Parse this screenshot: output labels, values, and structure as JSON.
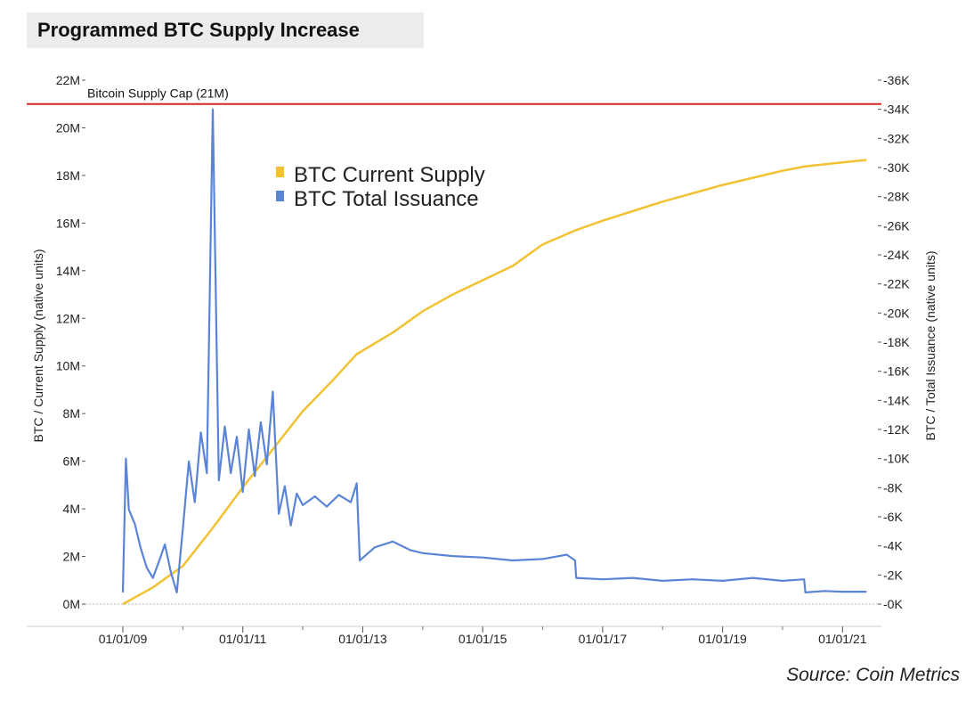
{
  "chart_data": {
    "type": "line",
    "title": "Programmed BTC Supply Increase",
    "source": "Source: Coin Metrics",
    "ylabel_left": "BTC / Current Supply (native units)",
    "ylabel_right": "BTC / Total Issuance (native units)",
    "left_ticks": [
      "0M",
      "2M",
      "4M",
      "6M",
      "8M",
      "10M",
      "12M",
      "14M",
      "16M",
      "18M",
      "20M",
      "22M"
    ],
    "right_ticks": [
      "0K",
      "2K",
      "4K",
      "6K",
      "8K",
      "10K",
      "12K",
      "14K",
      "16K",
      "18K",
      "20K",
      "22K",
      "24K",
      "26K",
      "28K",
      "30K",
      "32K",
      "34K",
      "36K"
    ],
    "x_ticks": [
      "01/01/09",
      "01/01/11",
      "01/01/13",
      "01/01/15",
      "01/01/17",
      "01/01/19",
      "01/01/21"
    ],
    "ylim_left": [
      0,
      22000000
    ],
    "ylim_right": [
      0,
      36000
    ],
    "xlim": [
      2009.0,
      2021.5
    ],
    "cap": {
      "label": "Bitcoin Supply Cap (21M)",
      "value": 21000000,
      "color": "#d62728"
    },
    "legend_placement": "upper-center",
    "grid": false,
    "series": [
      {
        "name": "BTC Current Supply",
        "axis": "left",
        "color": "#f2c233",
        "x": [
          2009.0,
          2009.5,
          2010.0,
          2010.5,
          2011.0,
          2011.5,
          2012.0,
          2012.5,
          2012.9,
          2013.5,
          2014.0,
          2014.5,
          2015.0,
          2015.5,
          2016.0,
          2016.55,
          2017.0,
          2017.5,
          2018.0,
          2018.5,
          2019.0,
          2019.5,
          2020.0,
          2020.37,
          2021.0,
          2021.4
        ],
        "values": [
          0,
          700000,
          1600000,
          3200000,
          4900000,
          6500000,
          8100000,
          9400000,
          10500000,
          11400000,
          12300000,
          13000000,
          13600000,
          14200000,
          15100000,
          15700000,
          16100000,
          16500000,
          16900000,
          17250000,
          17600000,
          17900000,
          18200000,
          18380000,
          18550000,
          18650000
        ]
      },
      {
        "name": "BTC Total Issuance",
        "axis": "right",
        "color": "#5b84d6",
        "x": [
          2009.0,
          2009.05,
          2009.1,
          2009.2,
          2009.3,
          2009.4,
          2009.5,
          2009.6,
          2009.7,
          2009.8,
          2009.9,
          2010.0,
          2010.1,
          2010.2,
          2010.3,
          2010.4,
          2010.5,
          2010.6,
          2010.7,
          2010.8,
          2010.9,
          2011.0,
          2011.1,
          2011.2,
          2011.3,
          2011.4,
          2011.5,
          2011.6,
          2011.7,
          2011.8,
          2011.9,
          2012.0,
          2012.2,
          2012.4,
          2012.6,
          2012.8,
          2012.9,
          2012.95,
          2013.2,
          2013.5,
          2013.8,
          2014.0,
          2014.5,
          2015.0,
          2015.5,
          2016.0,
          2016.4,
          2016.54,
          2016.56,
          2017.0,
          2017.5,
          2018.0,
          2018.5,
          2019.0,
          2019.5,
          2020.0,
          2020.36,
          2020.38,
          2020.7,
          2021.0,
          2021.4
        ],
        "values": [
          800,
          10000,
          6500,
          5500,
          3800,
          2500,
          1800,
          2900,
          4100,
          2200,
          800,
          5200,
          9800,
          7000,
          11800,
          9000,
          34000,
          8500,
          12200,
          9000,
          11500,
          7700,
          12000,
          8800,
          12500,
          9600,
          14600,
          6200,
          8100,
          5400,
          7600,
          6800,
          7400,
          6700,
          7500,
          7000,
          8300,
          3000,
          3900,
          4300,
          3700,
          3500,
          3300,
          3200,
          3000,
          3100,
          3400,
          3000,
          1800,
          1700,
          1800,
          1600,
          1700,
          1600,
          1800,
          1600,
          1700,
          800,
          900,
          850,
          850
        ]
      }
    ]
  }
}
